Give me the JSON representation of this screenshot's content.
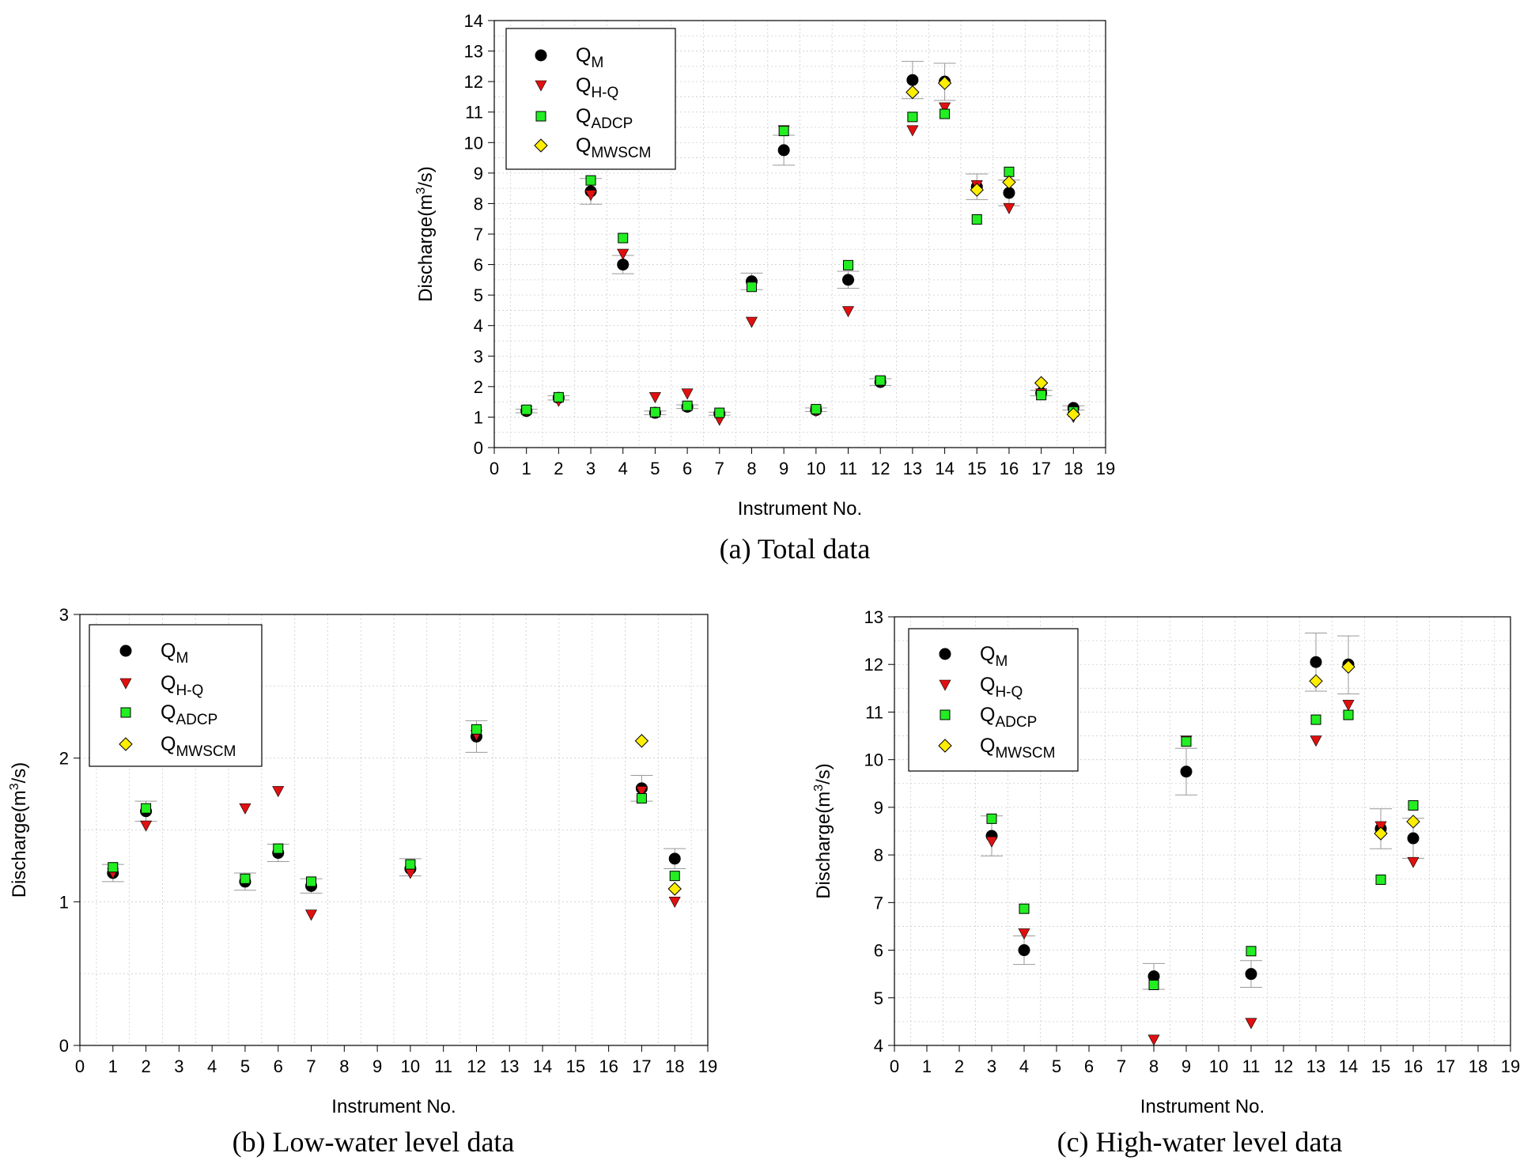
{
  "colors": {
    "QM": "#000000",
    "QHQ": "#e01010",
    "QADCP": "#22ee22",
    "QMWSCM": "#ffee00",
    "error": "#999999",
    "grid": "#cccccc"
  },
  "legend": [
    {
      "key": "QM",
      "base": "Q",
      "sub": "M",
      "marker": "circle"
    },
    {
      "key": "QHQ",
      "base": "Q",
      "sub": "H-Q",
      "marker": "triangle-down"
    },
    {
      "key": "QADCP",
      "base": "Q",
      "sub": "ADCP",
      "marker": "square"
    },
    {
      "key": "QMWSCM",
      "base": "Q",
      "sub": "MWSCM",
      "marker": "diamond"
    }
  ],
  "chart_data": [
    {
      "type": "scatter",
      "caption": "(a) Total data",
      "xlabel": "Instrument No.",
      "ylabel_base": "Discharge(m",
      "ylabel_sup": "3",
      "ylabel_end": "/s)",
      "xlim": [
        0,
        19
      ],
      "ylim": [
        0,
        14
      ],
      "xticks": [
        0,
        1,
        2,
        3,
        4,
        5,
        6,
        7,
        8,
        9,
        10,
        11,
        12,
        13,
        14,
        15,
        16,
        17,
        18,
        19
      ],
      "yticks": [
        0,
        1,
        2,
        3,
        4,
        5,
        6,
        7,
        8,
        9,
        10,
        11,
        12,
        13,
        14
      ],
      "grid": true,
      "legend_position": "top-left",
      "series": [
        {
          "key": "QM",
          "x": [
            1,
            2,
            3,
            4,
            5,
            6,
            7,
            8,
            9,
            10,
            11,
            12,
            13,
            14,
            15,
            16,
            17,
            18
          ],
          "y": [
            1.2,
            1.63,
            8.4,
            6.0,
            1.14,
            1.34,
            1.11,
            5.45,
            9.75,
            1.23,
            5.5,
            2.15,
            12.05,
            12.0,
            8.55,
            8.35,
            1.79,
            1.3
          ]
        },
        {
          "key": "QHQ",
          "x": [
            1,
            2,
            3,
            4,
            5,
            6,
            7,
            8,
            9,
            10,
            11,
            12,
            13,
            14,
            15,
            16,
            17,
            18
          ],
          "y": [
            1.2,
            1.53,
            8.28,
            6.35,
            1.65,
            1.77,
            0.91,
            4.12,
            10.4,
            1.2,
            4.47,
            2.16,
            10.4,
            11.15,
            8.6,
            7.85,
            1.77,
            1.0
          ]
        },
        {
          "key": "QADCP",
          "x": [
            1,
            2,
            3,
            4,
            5,
            6,
            7,
            8,
            9,
            10,
            11,
            12,
            13,
            14,
            15,
            16,
            17,
            18
          ],
          "y": [
            1.24,
            1.65,
            8.76,
            6.87,
            1.16,
            1.37,
            1.14,
            5.27,
            10.38,
            1.26,
            5.98,
            2.2,
            10.84,
            10.94,
            7.48,
            9.04,
            1.72,
            1.18
          ]
        },
        {
          "key": "QMWSCM",
          "x": [
            13,
            14,
            15,
            16,
            17,
            18
          ],
          "y": [
            11.65,
            11.95,
            8.45,
            8.7,
            2.12,
            1.09
          ]
        }
      ],
      "error_bars": {
        "x": [
          1,
          2,
          3,
          4,
          5,
          6,
          7,
          8,
          9,
          10,
          11,
          12,
          13,
          14,
          15,
          16,
          17,
          18
        ],
        "low": [
          1.14,
          1.56,
          7.98,
          5.7,
          1.08,
          1.28,
          1.06,
          5.18,
          9.26,
          1.18,
          5.22,
          2.04,
          11.44,
          11.38,
          8.13,
          7.93,
          1.7,
          1.23
        ],
        "high": [
          1.26,
          1.7,
          8.82,
          6.3,
          1.2,
          1.4,
          1.16,
          5.72,
          10.24,
          1.3,
          5.78,
          2.26,
          12.66,
          12.6,
          8.97,
          8.77,
          1.88,
          1.37
        ]
      }
    },
    {
      "type": "scatter",
      "caption": "(b) Low-water level data",
      "xlabel": "Instrument No.",
      "ylabel_base": "Discharge(m",
      "ylabel_sup": "3",
      "ylabel_end": "/s)",
      "xlim": [
        0,
        19
      ],
      "ylim": [
        0,
        3
      ],
      "xticks": [
        0,
        1,
        2,
        3,
        4,
        5,
        6,
        7,
        8,
        9,
        10,
        11,
        12,
        13,
        14,
        15,
        16,
        17,
        18,
        19
      ],
      "yticks": [
        0,
        1,
        2,
        3
      ],
      "grid": true,
      "legend_position": "top-left",
      "series": [
        {
          "key": "QM",
          "x": [
            1,
            2,
            5,
            6,
            7,
            10,
            12,
            17,
            18
          ],
          "y": [
            1.2,
            1.63,
            1.14,
            1.34,
            1.11,
            1.23,
            2.15,
            1.79,
            1.3
          ]
        },
        {
          "key": "QHQ",
          "x": [
            1,
            2,
            5,
            6,
            7,
            10,
            12,
            17,
            18
          ],
          "y": [
            1.2,
            1.53,
            1.65,
            1.77,
            0.91,
            1.2,
            2.16,
            1.77,
            1.0
          ]
        },
        {
          "key": "QADCP",
          "x": [
            1,
            2,
            5,
            6,
            7,
            10,
            12,
            17,
            18
          ],
          "y": [
            1.24,
            1.65,
            1.16,
            1.37,
            1.14,
            1.26,
            2.2,
            1.72,
            1.18
          ]
        },
        {
          "key": "QMWSCM",
          "x": [
            17,
            18
          ],
          "y": [
            2.12,
            1.09
          ]
        }
      ],
      "error_bars": {
        "x": [
          1,
          2,
          5,
          6,
          7,
          10,
          12,
          17,
          18
        ],
        "low": [
          1.14,
          1.56,
          1.08,
          1.28,
          1.06,
          1.18,
          2.04,
          1.7,
          1.23
        ],
        "high": [
          1.26,
          1.7,
          1.2,
          1.4,
          1.16,
          1.3,
          2.26,
          1.88,
          1.37
        ]
      }
    },
    {
      "type": "scatter",
      "caption": "(c) High-water level data",
      "xlabel": "Instrument No.",
      "ylabel_base": "Discharge(m",
      "ylabel_sup": "3",
      "ylabel_end": "/s)",
      "xlim": [
        0,
        19
      ],
      "ylim": [
        4,
        13
      ],
      "xticks": [
        0,
        1,
        2,
        3,
        4,
        5,
        6,
        7,
        8,
        9,
        10,
        11,
        12,
        13,
        14,
        15,
        16,
        17,
        18,
        19
      ],
      "yticks": [
        4,
        5,
        6,
        7,
        8,
        9,
        10,
        11,
        12,
        13
      ],
      "grid": true,
      "legend_position": "top-left",
      "series": [
        {
          "key": "QM",
          "x": [
            3,
            4,
            8,
            9,
            11,
            13,
            14,
            15,
            16
          ],
          "y": [
            8.4,
            6.0,
            5.45,
            9.75,
            5.5,
            12.05,
            12.0,
            8.55,
            8.35
          ]
        },
        {
          "key": "QHQ",
          "x": [
            3,
            4,
            8,
            9,
            11,
            13,
            14,
            15,
            16
          ],
          "y": [
            8.28,
            6.35,
            4.12,
            10.4,
            4.47,
            10.4,
            11.15,
            8.6,
            7.85
          ]
        },
        {
          "key": "QADCP",
          "x": [
            3,
            4,
            8,
            9,
            11,
            13,
            14,
            15,
            16
          ],
          "y": [
            8.76,
            6.87,
            5.27,
            10.38,
            5.98,
            10.84,
            10.94,
            7.48,
            9.04
          ]
        },
        {
          "key": "QMWSCM",
          "x": [
            13,
            14,
            15,
            16
          ],
          "y": [
            11.65,
            11.95,
            8.45,
            8.7
          ]
        }
      ],
      "error_bars": {
        "x": [
          3,
          4,
          8,
          9,
          11,
          13,
          14,
          15,
          16
        ],
        "low": [
          7.98,
          5.7,
          5.18,
          9.26,
          5.22,
          11.44,
          11.38,
          8.13,
          7.93
        ],
        "high": [
          8.82,
          6.3,
          5.72,
          10.24,
          5.78,
          12.66,
          12.6,
          8.97,
          8.77
        ]
      }
    }
  ]
}
